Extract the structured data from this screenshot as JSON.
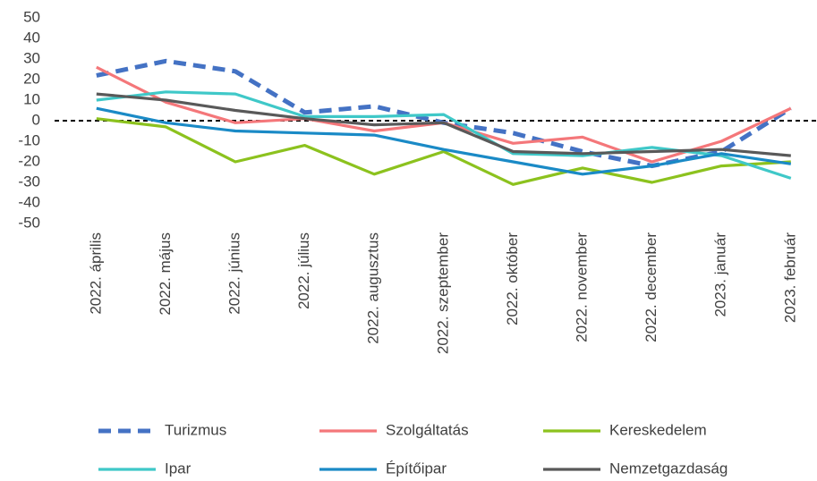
{
  "chart_data": {
    "type": "line",
    "categories": [
      "2022. április",
      "2022. május",
      "2022. június",
      "2022. július",
      "2022. augusztus",
      "2022. szeptember",
      "2022. október",
      "2022. november",
      "2022. december",
      "2023. január",
      "2023. február"
    ],
    "series": [
      {
        "name": "Turizmus",
        "color": "#4472c4",
        "style": "dashed",
        "values": [
          22,
          29,
          24,
          4,
          7,
          -1,
          -6,
          -15,
          -22,
          -15,
          6
        ]
      },
      {
        "name": "Szolgáltatás",
        "color": "#f4777a",
        "style": "solid",
        "values": [
          26,
          9,
          -1,
          1,
          -5,
          -1,
          -11,
          -8,
          -20,
          -10,
          6
        ]
      },
      {
        "name": "Kereskedelem",
        "color": "#8cc21e",
        "style": "solid",
        "values": [
          1,
          -3,
          -20,
          -12,
          -26,
          -15,
          -31,
          -23,
          -30,
          -22,
          -20
        ]
      },
      {
        "name": "Ipar",
        "color": "#3fc8c8",
        "style": "solid",
        "values": [
          10,
          14,
          13,
          2,
          2,
          3,
          -16,
          -17,
          -13,
          -17,
          -28
        ]
      },
      {
        "name": "Építőipar",
        "color": "#1a8ac6",
        "style": "solid",
        "values": [
          6,
          -1,
          -5,
          -6,
          -7,
          -14,
          -20,
          -26,
          -22,
          -16,
          -21
        ]
      },
      {
        "name": "Nemzetgazdaság",
        "color": "#595959",
        "style": "solid",
        "values": [
          13,
          10,
          5,
          1,
          -2,
          -1,
          -15,
          -16,
          -15,
          -14,
          -17
        ]
      }
    ],
    "ylim": [
      -50,
      50
    ],
    "yticks": [
      -50,
      -40,
      -30,
      -20,
      -10,
      0,
      10,
      20,
      30,
      40,
      50
    ],
    "grid": false,
    "zero_line": true,
    "legend": "bottom"
  }
}
